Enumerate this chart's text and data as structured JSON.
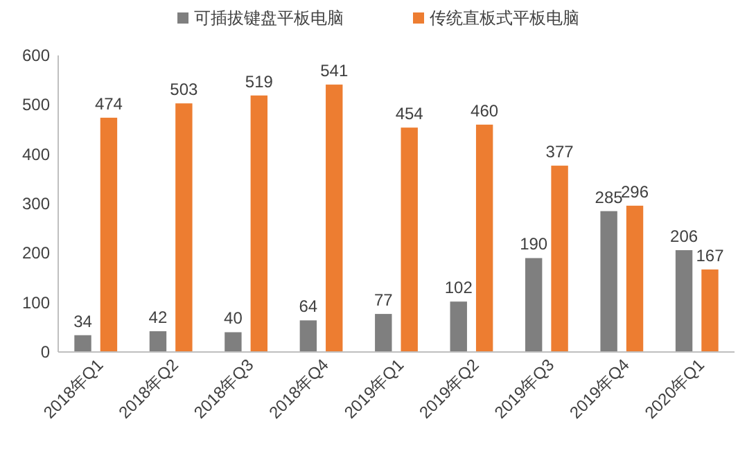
{
  "chart_data": {
    "type": "bar",
    "categories": [
      "2018年Q1",
      "2018年Q2",
      "2018年Q3",
      "2018年Q4",
      "2019年Q1",
      "2019年Q2",
      "2019年Q3",
      "2019年Q4",
      "2020年Q1"
    ],
    "series": [
      {
        "name": "可插拔键盘平板电脑",
        "color": "#7f7f7f",
        "values": [
          34,
          42,
          40,
          64,
          77,
          102,
          190,
          285,
          206
        ]
      },
      {
        "name": "传统直板式平板电脑",
        "color": "#ed7d31",
        "values": [
          474,
          503,
          519,
          541,
          454,
          460,
          377,
          296,
          167
        ]
      }
    ],
    "ylim": [
      0,
      600
    ],
    "yticks": [
      0,
      100,
      200,
      300,
      400,
      500,
      600
    ],
    "data_labels": true,
    "legend": "top",
    "grid": false
  }
}
